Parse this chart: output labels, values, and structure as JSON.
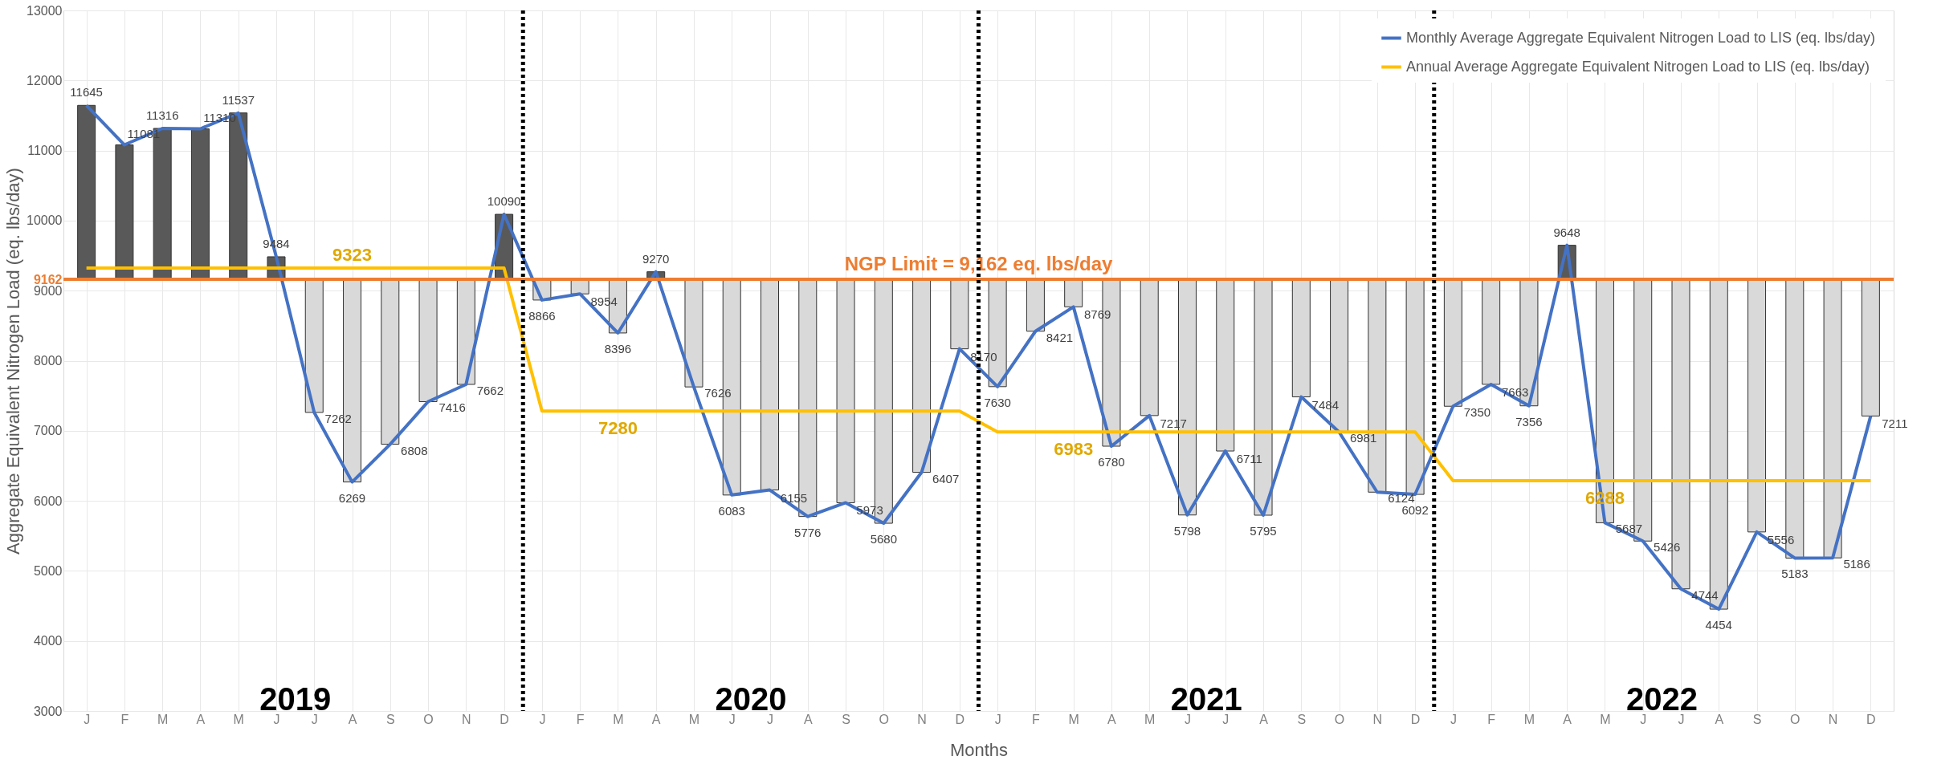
{
  "chart_data": {
    "type": "bar",
    "xlabel": "Months",
    "ylabel": "Aggregate Equivalent Nitrogen Load (eq. lbs/day)",
    "categories": [
      "J",
      "F",
      "M",
      "A",
      "M",
      "J",
      "J",
      "A",
      "S",
      "O",
      "N",
      "D",
      "J",
      "F",
      "M",
      "A",
      "M",
      "J",
      "J",
      "A",
      "S",
      "O",
      "N",
      "D",
      "J",
      "F",
      "M",
      "A",
      "M",
      "J",
      "J",
      "A",
      "S",
      "O",
      "N",
      "D",
      "J",
      "F",
      "M",
      "A",
      "M",
      "J",
      "J",
      "A",
      "S",
      "O",
      "N",
      "D"
    ],
    "ylim": [
      3000,
      13000
    ],
    "yticks": [
      3000,
      4000,
      5000,
      6000,
      7000,
      8000,
      9000,
      9162,
      10000,
      11000,
      12000,
      13000
    ],
    "grid": true,
    "legend": "top right",
    "marker": "none",
    "series": [
      {
        "base": [
          9162,
          9162,
          9162,
          9162,
          9162,
          9162,
          9162,
          9162,
          9162,
          9162,
          9162,
          9162,
          9162,
          9162,
          9162,
          9162,
          9162,
          9162,
          9162,
          9162,
          9162,
          9162,
          9162,
          9162,
          9162,
          9162,
          9162,
          9162,
          9162,
          9162,
          9162,
          9162,
          9162,
          9162,
          9162,
          9162,
          9162,
          9162,
          9162,
          9162,
          9162,
          9162,
          9162,
          9162,
          9162,
          9162,
          9162,
          9162
        ],
        "values": [
          2483,
          1919,
          2154,
          2148,
          2375,
          322,
          -1900,
          -2893,
          -2354,
          -1746,
          -1500,
          928,
          -296,
          -208,
          -766,
          108,
          -1536,
          -3079,
          -3007,
          -3386,
          -3189,
          -3482,
          -2755,
          -992,
          -1532,
          -741,
          -393,
          -2382,
          -1945,
          -3364,
          -2451,
          -3367,
          -1678,
          -2181,
          -3038,
          -3070,
          -1812,
          -1499,
          -1806,
          486,
          -3475,
          -3736,
          -4418,
          -4708,
          -3606,
          -3979,
          -3976,
          -1951
        ],
        "colors": [
          "#595959",
          "#595959",
          "#595959",
          "#595959",
          "#595959",
          "#595959",
          "#d9d9d9",
          "#d9d9d9",
          "#d9d9d9",
          "#d9d9d9",
          "#d9d9d9",
          "#595959",
          "#d9d9d9",
          "#d9d9d9",
          "#d9d9d9",
          "#595959",
          "#d9d9d9",
          "#d9d9d9",
          "#d9d9d9",
          "#d9d9d9",
          "#d9d9d9",
          "#d9d9d9",
          "#d9d9d9",
          "#d9d9d9",
          "#d9d9d9",
          "#d9d9d9",
          "#d9d9d9",
          "#d9d9d9",
          "#d9d9d9",
          "#d9d9d9",
          "#d9d9d9",
          "#d9d9d9",
          "#d9d9d9",
          "#d9d9d9",
          "#d9d9d9",
          "#d9d9d9",
          "#d9d9d9",
          "#d9d9d9",
          "#d9d9d9",
          "#595959",
          "#d9d9d9",
          "#d9d9d9",
          "#d9d9d9",
          "#d9d9d9",
          "#d9d9d9",
          "#d9d9d9",
          "#d9d9d9",
          "#d9d9d9"
        ]
      },
      {
        "type": "line",
        "name": "Monthly Average Aggregate Equivalent Nitrogen Load to LIS (eq. lbs/day)",
        "color": "#4472c4",
        "values": [
          11645,
          11081,
          11316,
          11310,
          11537,
          9484,
          7262,
          6269,
          6808,
          7416,
          7662,
          10090,
          8866,
          8954,
          8396,
          9270,
          7626,
          6083,
          6155,
          5776,
          5973,
          5680,
          6407,
          8170,
          7630,
          8421,
          8769,
          6780,
          7217,
          5798,
          6711,
          5795,
          7484,
          6981,
          6124,
          6092,
          7350,
          7663,
          7356,
          9648,
          5687,
          5426,
          4744,
          4454,
          5556,
          5183,
          5186,
          7211
        ],
        "value_labels": [
          "11645",
          "11081",
          "11316",
          "11310",
          "11537",
          "9484",
          "7262",
          "6269",
          "6808",
          "7416",
          "7662",
          "10090",
          "8866",
          "8954",
          "8396",
          "9270",
          "7626",
          "6083",
          "6155",
          "5776",
          "5973",
          "5680",
          "6407",
          "8170",
          "7630",
          "8421",
          "8769",
          "6780",
          "7217",
          "5798",
          "6711",
          "5795",
          "7484",
          "6981",
          "6124",
          "6092",
          "7350",
          "7663",
          "7356",
          "9648",
          "5687",
          "5426",
          "4744",
          "4454",
          "5556",
          "5183",
          "5186",
          "7211"
        ]
      },
      {
        "type": "line",
        "name": "Annual Average Aggregate Equivalent Nitrogen Load to LIS (eq. lbs/day)",
        "color": "#ffc000",
        "values": [
          9323,
          9323,
          9323,
          9323,
          9323,
          9323,
          9323,
          9323,
          9323,
          9323,
          9323,
          9323,
          7280,
          7280,
          7280,
          7280,
          7280,
          7280,
          7280,
          7280,
          7280,
          7280,
          7280,
          7280,
          6983,
          6983,
          6983,
          6983,
          6983,
          6983,
          6983,
          6983,
          6983,
          6983,
          6983,
          6983,
          6288,
          6288,
          6288,
          6288,
          6288,
          6288,
          6288,
          6288,
          6288,
          6288,
          6288,
          6288
        ],
        "value_labels": [
          null,
          null,
          null,
          null,
          null,
          null,
          null,
          "9323",
          null,
          null,
          null,
          null,
          null,
          null,
          "7280",
          null,
          null,
          null,
          null,
          null,
          null,
          null,
          null,
          null,
          null,
          null,
          "6983",
          null,
          null,
          null,
          null,
          null,
          null,
          null,
          null,
          null,
          null,
          null,
          null,
          null,
          "6288",
          null,
          null,
          null,
          null,
          null,
          null,
          null
        ]
      }
    ],
    "ref_lines": [
      {
        "axis": "y",
        "value": 9162,
        "label": "NGP Limit = 9,162 eq. lbs/day",
        "color": "#ed7d31",
        "line_style": "solid"
      }
    ],
    "annotations": [
      "2019",
      "2020",
      "2021",
      "2022"
    ]
  }
}
